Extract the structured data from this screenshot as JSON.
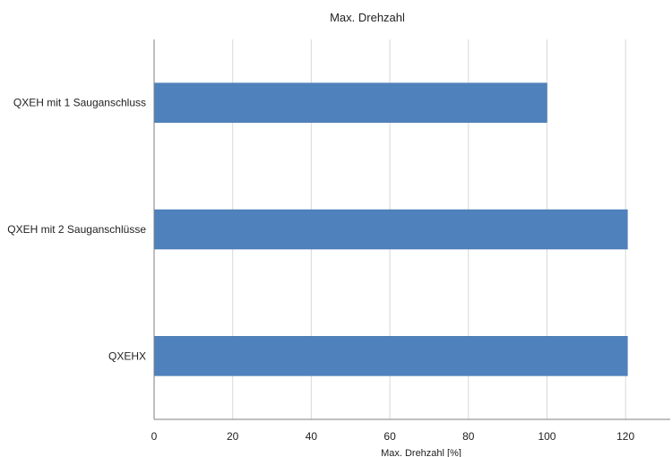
{
  "chart_data": {
    "type": "bar",
    "orientation": "horizontal",
    "title": "Max. Drehzahl",
    "xlabel": "Max. Drehzahl [%]",
    "ylabel": "",
    "categories": [
      "QXEH mit 1 Sauganschluss",
      "QXEH mit 2 Sauganschlüsse",
      "QXEHX"
    ],
    "values": [
      100,
      120.5,
      120.5
    ],
    "xlim": [
      0,
      130
    ],
    "xticks": [
      0,
      20,
      40,
      60,
      80,
      100,
      120
    ],
    "grid": true,
    "legend": "none",
    "colors": {
      "bar": "#4f81bd",
      "bar_border": "#3f6fa6",
      "grid": "#d9d9d9",
      "axis": "#7f7f7f"
    }
  }
}
